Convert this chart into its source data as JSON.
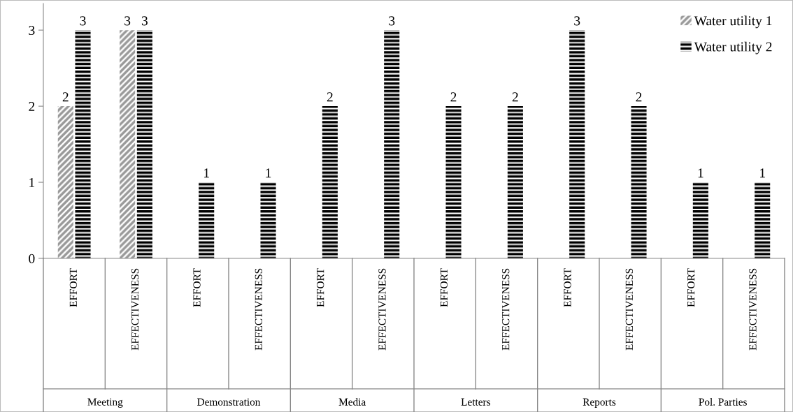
{
  "chart_data": {
    "type": "bar",
    "categories": [
      "EFFORT",
      "EFFECTIVENESS",
      "EFFORT",
      "EFFECTIVENESS",
      "EFFORT",
      "EFFECTIVENESS",
      "EFFORT",
      "EFFECTIVENESS",
      "EFFORT",
      "EFFECTIVENESS",
      "EFFORT",
      "EFFECTIVENESS"
    ],
    "annotations": [
      "Meeting",
      "Demonstration",
      "Media",
      "Letters",
      "Reports",
      "Pol. Parties"
    ],
    "series": [
      {
        "name": "Water utility 1",
        "color": "#999999",
        "values": [
          2,
          3,
          null,
          null,
          null,
          null,
          null,
          null,
          null,
          null,
          null,
          null
        ]
      },
      {
        "name": "Water utility 2",
        "color": "#000000",
        "values": [
          3,
          3,
          1,
          1,
          2,
          3,
          2,
          2,
          3,
          2,
          1,
          1
        ]
      }
    ],
    "ylim": [
      0,
      3.35
    ],
    "yticks": [
      0,
      1,
      2,
      3
    ],
    "data_labels": true,
    "legend": "top right",
    "grid": false
  }
}
